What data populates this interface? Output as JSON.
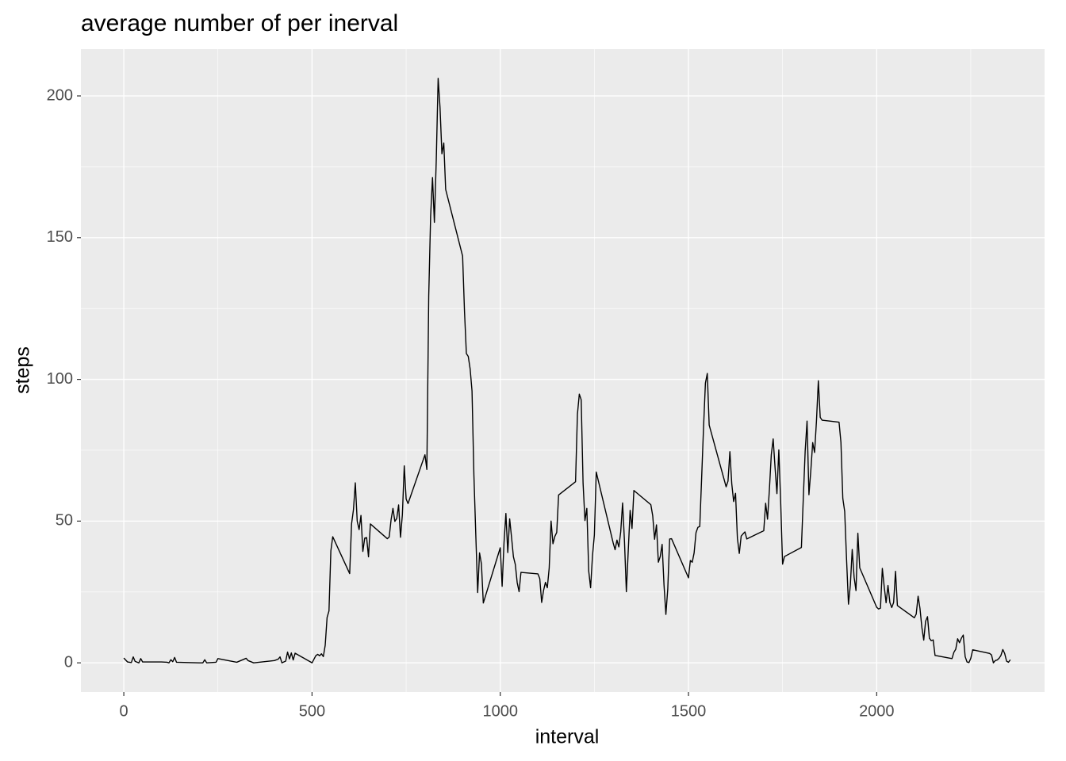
{
  "chart_data": {
    "type": "line",
    "title": "average number of per inerval",
    "x_label": "interval",
    "y_label": "steps",
    "x": [
      0,
      10,
      20,
      25,
      30,
      40,
      45,
      50,
      100,
      115,
      120,
      125,
      130,
      135,
      140,
      200,
      210,
      215,
      220,
      245,
      250,
      300,
      325,
      330,
      345,
      400,
      410,
      415,
      420,
      430,
      435,
      440,
      445,
      450,
      455,
      500,
      510,
      515,
      520,
      525,
      530,
      535,
      540,
      545,
      550,
      555,
      600,
      605,
      610,
      615,
      620,
      625,
      630,
      635,
      640,
      645,
      650,
      655,
      700,
      705,
      710,
      715,
      720,
      725,
      730,
      735,
      740,
      745,
      750,
      755,
      800,
      805,
      810,
      815,
      820,
      825,
      830,
      835,
      840,
      845,
      850,
      855,
      900,
      905,
      910,
      915,
      920,
      925,
      930,
      935,
      940,
      945,
      950,
      955,
      1000,
      1005,
      1010,
      1015,
      1020,
      1025,
      1030,
      1035,
      1040,
      1045,
      1050,
      1055,
      1100,
      1105,
      1110,
      1115,
      1120,
      1125,
      1130,
      1135,
      1140,
      1145,
      1150,
      1155,
      1200,
      1205,
      1210,
      1215,
      1220,
      1225,
      1230,
      1235,
      1240,
      1245,
      1250,
      1255,
      1300,
      1305,
      1310,
      1315,
      1320,
      1325,
      1330,
      1335,
      1340,
      1345,
      1350,
      1355,
      1400,
      1405,
      1410,
      1415,
      1420,
      1425,
      1430,
      1435,
      1440,
      1445,
      1450,
      1455,
      1500,
      1505,
      1510,
      1515,
      1520,
      1525,
      1530,
      1535,
      1540,
      1545,
      1550,
      1555,
      1600,
      1605,
      1610,
      1615,
      1620,
      1625,
      1630,
      1635,
      1640,
      1645,
      1650,
      1655,
      1700,
      1705,
      1710,
      1715,
      1720,
      1725,
      1730,
      1735,
      1740,
      1745,
      1750,
      1755,
      1800,
      1805,
      1810,
      1815,
      1820,
      1825,
      1830,
      1835,
      1840,
      1845,
      1850,
      1855,
      1900,
      1905,
      1910,
      1915,
      1920,
      1925,
      1930,
      1935,
      1940,
      1945,
      1950,
      1955,
      2000,
      2005,
      2010,
      2015,
      2020,
      2025,
      2030,
      2035,
      2040,
      2045,
      2050,
      2055,
      2100,
      2105,
      2110,
      2115,
      2120,
      2125,
      2130,
      2135,
      2140,
      2145,
      2150,
      2155,
      2200,
      2205,
      2210,
      2215,
      2220,
      2225,
      2230,
      2235,
      2240,
      2245,
      2250,
      2255,
      2300,
      2305,
      2310,
      2315,
      2320,
      2325,
      2330,
      2335,
      2340,
      2345,
      2350,
      2355
    ],
    "series": [
      {
        "name": "steps",
        "color": "#000000",
        "values": [
          1.7,
          0.3,
          0.1,
          2.1,
          0.5,
          0,
          1.5,
          0.3,
          0.3,
          0.2,
          0,
          1.1,
          0.4,
          1.9,
          0.2,
          0,
          0,
          1.1,
          0,
          0.2,
          1.5,
          0.2,
          1.6,
          0.8,
          0,
          0.8,
          1.3,
          2.1,
          0,
          0.6,
          3.8,
          1.4,
          3.5,
          1,
          3.4,
          0,
          2.5,
          3,
          2.5,
          3.2,
          2.2,
          6.2,
          16,
          18.3,
          39.5,
          44.5,
          31.5,
          49,
          54,
          63.5,
          50,
          47,
          52,
          39.3,
          44,
          44.2,
          37.4,
          49,
          43.8,
          44.4,
          50.5,
          54.5,
          49.9,
          50.9,
          55.7,
          44.3,
          52.3,
          69.5,
          57.8,
          56.2,
          73.4,
          68.2,
          129.4,
          157.5,
          171.2,
          155.4,
          177.3,
          206.2,
          195.9,
          179.6,
          183.4,
          167,
          143.5,
          124,
          109.1,
          108.1,
          103.7,
          95.9,
          66.2,
          45.2,
          24.8,
          38.8,
          34.9,
          21.1,
          40.6,
          27,
          42.4,
          52.7,
          38.9,
          50.8,
          44.3,
          37.4,
          34.7,
          28.3,
          25.1,
          31.9,
          31.4,
          29.7,
          21.3,
          25.5,
          28.4,
          26.5,
          33.4,
          50,
          42,
          44.6,
          46,
          59.2,
          63.9,
          87.7,
          94.8,
          92.8,
          63.4,
          50.2,
          54.5,
          32.4,
          26.5,
          37.7,
          45.1,
          67.3,
          42.3,
          39.9,
          43.3,
          40.9,
          46.2,
          56.4,
          42.8,
          25.1,
          39.5,
          53.8,
          47.4,
          60.8,
          55.8,
          51.9,
          43.6,
          48.7,
          35.5,
          37.5,
          41.8,
          27.5,
          17.1,
          26.1,
          43.7,
          43.8,
          30,
          36.1,
          35.5,
          38.8,
          45.9,
          47.8,
          48.1,
          65.3,
          82.9,
          98.7,
          102.1,
          83.9,
          62.1,
          64.1,
          74.5,
          63.2,
          56.9,
          59.8,
          43.9,
          38.6,
          44.7,
          45.5,
          46.2,
          43.7,
          46.6,
          56.3,
          50.7,
          61.2,
          73.4,
          79,
          68.9,
          59.7,
          75.1,
          56.5,
          34.8,
          37.5,
          40.7,
          58,
          74.7,
          85.3,
          59.3,
          67.8,
          77.7,
          74.2,
          85.3,
          99.5,
          86.6,
          85.6,
          84.9,
          77.8,
          58,
          53.4,
          36.3,
          20.7,
          27.4,
          40,
          30.2,
          25.5,
          45.7,
          33.5,
          19.6,
          19,
          19.3,
          33.3,
          26.8,
          21.2,
          27.3,
          21.3,
          19.5,
          21.3,
          32.3,
          20.2,
          15.9,
          17.2,
          23.5,
          19.2,
          12.5,
          8,
          14.7,
          16.3,
          8.7,
          7.8,
          8.1,
          2.6,
          1.5,
          3.7,
          4.8,
          8.5,
          7.1,
          8.7,
          9.8,
          2.2,
          0.3,
          0.1,
          1.6,
          4.6,
          3.3,
          2.8,
          0,
          0.8,
          1,
          1.6,
          2.6,
          4.7,
          3.3,
          0.6,
          0.2,
          1.1
        ]
      }
    ],
    "xlim": [
      -114,
      2446
    ],
    "ylim": [
      -10.3,
      216.5
    ],
    "xticks": [
      0,
      500,
      1000,
      1500,
      2000
    ],
    "yticks": [
      0,
      50,
      100,
      150,
      200
    ],
    "grid": true
  }
}
